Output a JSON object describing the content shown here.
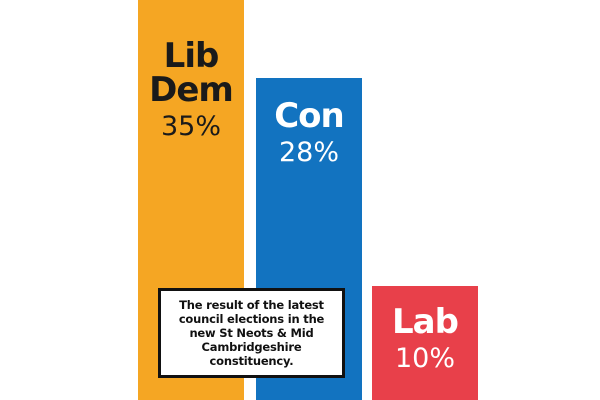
{
  "chart_data": {
    "type": "bar",
    "categories": [
      "Lib Dem",
      "Con",
      "Lab"
    ],
    "values": [
      35,
      28,
      10
    ],
    "value_labels": [
      "35%",
      "28%",
      "10%"
    ],
    "label_lines": [
      [
        "Lib",
        "Dem"
      ],
      [
        "Con"
      ],
      [
        "Lab"
      ]
    ],
    "colors": [
      "#f5a623",
      "#1273c0",
      "#e8404a"
    ],
    "label_colors": [
      "#1a1a1a",
      "#ffffff",
      "#ffffff"
    ],
    "unit": "%",
    "grid": false,
    "legend": "none"
  },
  "caption": {
    "text": "The result of the latest council elections in the new St Neots & Mid Cambridgeshire constituency."
  }
}
